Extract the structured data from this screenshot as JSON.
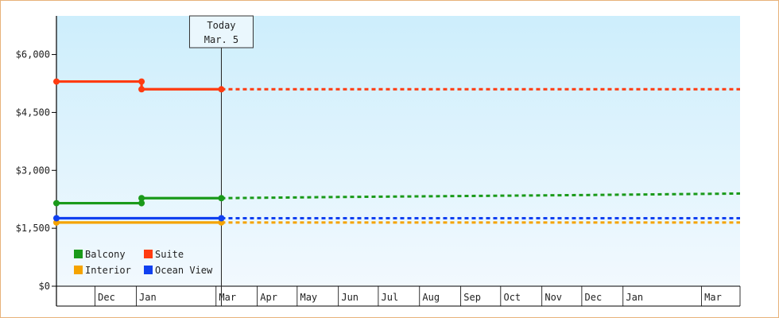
{
  "chart_data": {
    "type": "line",
    "title": "",
    "xlabel": "",
    "ylabel": "",
    "ylim": [
      0,
      7000
    ],
    "y_ticks": [
      {
        "value": 0,
        "label": "$0"
      },
      {
        "value": 1500,
        "label": "$1,500"
      },
      {
        "value": 3000,
        "label": "$3,000"
      },
      {
        "value": 4500,
        "label": "$4,500"
      },
      {
        "value": 6000,
        "label": "$6,000"
      }
    ],
    "x_range": [
      "2023-11-02",
      "2025-03-30"
    ],
    "month_ticks": [
      {
        "date": "2023-12-01",
        "label": "Dec"
      },
      {
        "date": "2024-01-01",
        "label": "Jan"
      },
      {
        "date": "2024-03-01",
        "label": "Mar"
      },
      {
        "date": "2024-04-01",
        "label": "Apr"
      },
      {
        "date": "2024-05-01",
        "label": "May"
      },
      {
        "date": "2024-06-01",
        "label": "Jun"
      },
      {
        "date": "2024-07-01",
        "label": "Jul"
      },
      {
        "date": "2024-08-01",
        "label": "Aug"
      },
      {
        "date": "2024-09-01",
        "label": "Sep"
      },
      {
        "date": "2024-10-01",
        "label": "Oct"
      },
      {
        "date": "2024-11-01",
        "label": "Nov"
      },
      {
        "date": "2024-12-01",
        "label": "Dec"
      },
      {
        "date": "2025-01-01",
        "label": "Jan"
      },
      {
        "date": "2025-03-01",
        "label": "Mar"
      }
    ],
    "month_ticks_forecast": [
      {
        "date": "2024-03-01",
        "label": "Mar"
      },
      {
        "date": "2024-04-01",
        "label": "Apr"
      },
      {
        "date": "2024-05-01",
        "label": "May"
      },
      {
        "date": "2024-06-01",
        "label": "Jun"
      },
      {
        "date": "2024-07-01",
        "label": "Jul"
      },
      {
        "date": "2024-08-01",
        "label": "Aug"
      },
      {
        "date": "2024-09-01",
        "label": "Sep"
      },
      {
        "date": "2024-10-01",
        "label": "Oct"
      },
      {
        "date": "2024-11-01",
        "label": "Nov"
      },
      {
        "date": "2024-12-01",
        "label": "Dec"
      },
      {
        "date": "2025-01-01",
        "label": "Jan"
      },
      {
        "date": "2025-03-01",
        "label": "Mar"
      }
    ],
    "today": {
      "date": "2024-03-05",
      "line1": "Today",
      "line2": "Mar. 5"
    },
    "series": [
      {
        "name": "Balcony",
        "color": "#1a9a1a",
        "actual": [
          [
            "2023-11-02",
            2150
          ],
          [
            "2024-01-05",
            2150
          ],
          [
            "2024-01-05",
            2280
          ],
          [
            "2024-03-05",
            2280
          ]
        ],
        "forecast": [
          [
            "2024-03-05",
            2280
          ],
          [
            "2024-06-01",
            2310
          ],
          [
            "2024-12-01",
            2360
          ],
          [
            "2025-03-30",
            2400
          ]
        ]
      },
      {
        "name": "Suite",
        "color": "#ff3b10",
        "actual": [
          [
            "2023-11-02",
            5300
          ],
          [
            "2024-01-05",
            5300
          ],
          [
            "2024-01-05",
            5100
          ],
          [
            "2024-03-05",
            5100
          ]
        ],
        "forecast": [
          [
            "2024-03-05",
            5100
          ],
          [
            "2025-03-30",
            5100
          ]
        ]
      },
      {
        "name": "Interior",
        "color": "#f5a300",
        "actual": [
          [
            "2023-11-02",
            1650
          ],
          [
            "2024-03-05",
            1650
          ]
        ],
        "forecast": [
          [
            "2024-03-05",
            1650
          ],
          [
            "2025-03-30",
            1650
          ]
        ]
      },
      {
        "name": "Ocean View",
        "color": "#1040f0",
        "actual": [
          [
            "2023-11-02",
            1760
          ],
          [
            "2024-03-05",
            1760
          ]
        ],
        "forecast": [
          [
            "2024-03-05",
            1760
          ],
          [
            "2025-03-30",
            1760
          ]
        ]
      }
    ],
    "markers": [
      {
        "series": "Balcony",
        "points": [
          [
            "2023-11-02",
            2150
          ],
          [
            "2024-01-05",
            2150
          ],
          [
            "2024-01-05",
            2280
          ],
          [
            "2024-03-05",
            2280
          ]
        ]
      },
      {
        "series": "Suite",
        "points": [
          [
            "2023-11-02",
            5300
          ],
          [
            "2024-01-05",
            5300
          ],
          [
            "2024-01-05",
            5100
          ],
          [
            "2024-03-05",
            5100
          ]
        ]
      },
      {
        "series": "Interior",
        "points": [
          [
            "2023-11-02",
            1650
          ],
          [
            "2024-03-05",
            1650
          ]
        ]
      },
      {
        "series": "Ocean View",
        "points": [
          [
            "2023-11-02",
            1760
          ],
          [
            "2024-03-05",
            1760
          ]
        ]
      }
    ],
    "legend": {
      "position": "bottom-left",
      "items": [
        "Balcony",
        "Suite",
        "Interior",
        "Ocean View"
      ]
    },
    "grid": false,
    "background_gradient": [
      "#cdeefc",
      "#f2f9fe"
    ]
  }
}
